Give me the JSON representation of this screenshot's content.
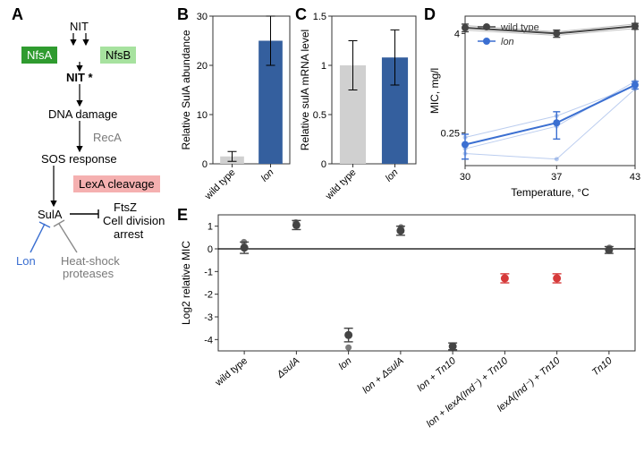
{
  "panelA": {
    "label": "A",
    "items": {
      "nit": "NIT",
      "nfsa": "NfsA",
      "nfsb": "NfsB",
      "nitstar": "NIT *",
      "dna": "DNA damage",
      "reca": "RecA",
      "sos": "SOS response",
      "lexa": "LexA cleavage",
      "sula": "SulA",
      "ftsz1": "FtsZ",
      "ftsz2": "Cell division",
      "ftsz3": "arrest",
      "lon": "Lon",
      "heat1": "Heat-shock",
      "heat2": "proteases"
    },
    "colors": {
      "green_dark": "#2f9b2f",
      "green_light": "#a7e29f",
      "red_light": "#f5b0b0",
      "grey": "#8a8a8a",
      "blue": "#3b6fd1",
      "black": "#000000"
    }
  },
  "panelB": {
    "label": "B",
    "ylabel": "Relative SulA abundance",
    "categories": [
      "wild type",
      "lon"
    ],
    "values": [
      1.5,
      25
    ],
    "err": [
      1.0,
      5.0
    ],
    "bar_colors": [
      "#d0d0d0",
      "#345f9e"
    ],
    "ylim": [
      0,
      30
    ],
    "ytick_step": 10,
    "background": "#ffffff",
    "panel_border": "#333333",
    "tick_fontsize": 11,
    "label_fontsize": 12
  },
  "panelC": {
    "label": "C",
    "ylabel": "Relative sulA mRNA level",
    "categories": [
      "wild type",
      "lon"
    ],
    "values": [
      1.0,
      1.08
    ],
    "err": [
      0.25,
      0.28
    ],
    "bar_colors": [
      "#d0d0d0",
      "#345f9e"
    ],
    "ylim": [
      0,
      1.5
    ],
    "ytick_step": 0.5,
    "background": "#ffffff",
    "panel_border": "#333333",
    "tick_fontsize": 11,
    "label_fontsize": 12
  },
  "panelD": {
    "label": "D",
    "ylabel": "MIC, mg/l",
    "xlabel": "Temperature, °C",
    "x_ticks": [
      30,
      37,
      43
    ],
    "y_ticks": [
      0.25,
      4.0
    ],
    "y_scale": "log",
    "legend": [
      {
        "label": "wild type",
        "color": "#444444"
      },
      {
        "label": "lon",
        "color": "#3b6fd1",
        "italic": true
      }
    ],
    "series": [
      {
        "name": "wild type",
        "color": "#444444",
        "x": [
          30,
          37,
          43
        ],
        "y": [
          4.7,
          4.0,
          4.9
        ],
        "err": [
          0.5,
          0.4,
          0.4
        ],
        "ghosts": [
          {
            "x": [
              30,
              37,
              43
            ],
            "y": [
              5.0,
              4.2,
              5.2
            ]
          },
          {
            "x": [
              30,
              37,
              43
            ],
            "y": [
              4.4,
              3.8,
              4.6
            ]
          }
        ]
      },
      {
        "name": "lon",
        "color": "#3b6fd1",
        "x": [
          30,
          37,
          43
        ],
        "y": [
          0.18,
          0.33,
          0.95
        ],
        "err": [
          0.06,
          0.12,
          0.1
        ],
        "ghosts": [
          {
            "x": [
              30,
              37,
              43
            ],
            "y": [
              0.16,
              0.3,
              1.05
            ]
          },
          {
            "x": [
              30,
              37,
              43
            ],
            "y": [
              0.14,
              0.12,
              0.85
            ]
          },
          {
            "x": [
              30,
              37,
              43
            ],
            "y": [
              0.22,
              0.4,
              0.92
            ]
          }
        ]
      }
    ],
    "panel_border": "#333333",
    "ghost_alpha": 0.35
  },
  "panelE": {
    "label": "E",
    "ylabel": "Log2 relative MIC",
    "categories": [
      "wild type",
      "ΔsulA",
      "lon",
      "lon + ΔsulA",
      "lon + Tn10",
      "lon + lexA(Ind⁻) + Tn10",
      "lexA(Ind⁻) + Tn10",
      "Tn10"
    ],
    "values": [
      0.05,
      1.05,
      -3.8,
      0.8,
      -4.3,
      -1.3,
      -1.3,
      -0.05
    ],
    "err": [
      0.25,
      0.2,
      0.3,
      0.2,
      0.15,
      0.2,
      0.2,
      0.15
    ],
    "colors": [
      "#444444",
      "#444444",
      "#444444",
      "#444444",
      "#444444",
      "#d63a3a",
      "#d63a3a",
      "#444444"
    ],
    "scatter_jitter": [
      [
        -0.02,
        0.25
      ],
      [
        -0.03,
        0.12
      ],
      [
        0.0,
        -0.55
      ],
      [
        0.02,
        0.15
      ],
      [
        0.0,
        0.0
      ],
      [
        0.0,
        0.0
      ],
      [
        0.0,
        0.0
      ],
      [
        0.02,
        0.1
      ]
    ],
    "ylim": [
      -4.5,
      1.5
    ],
    "ytick_step": 1,
    "zero_line_color": "#000000",
    "panel_border": "#333333",
    "tick_fontsize": 11,
    "label_fontsize": 12
  }
}
